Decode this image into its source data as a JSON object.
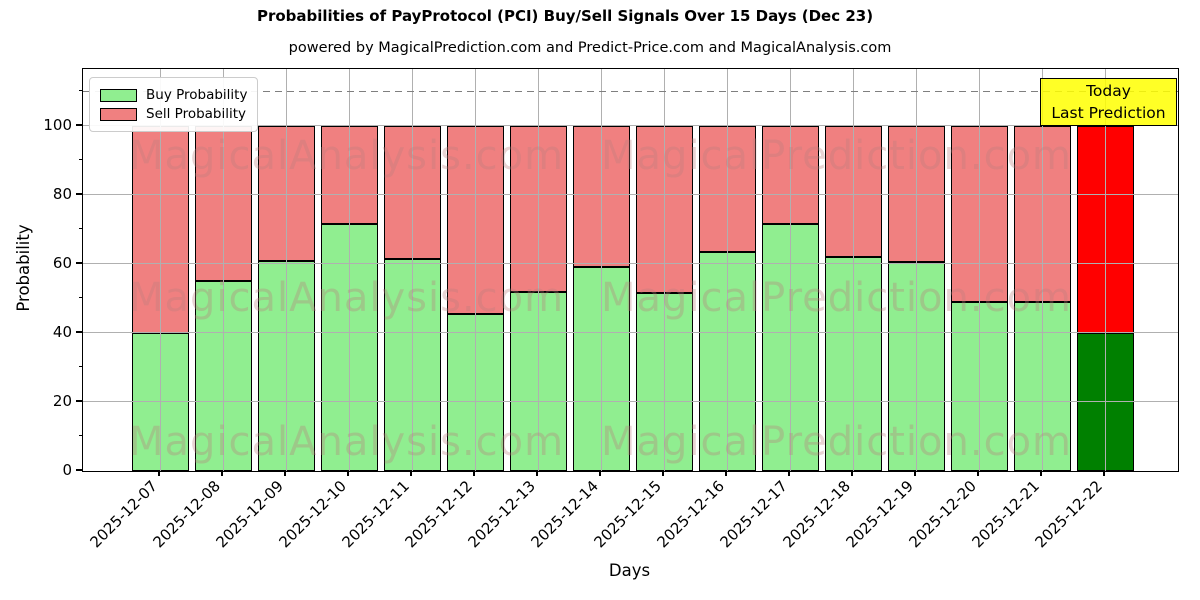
{
  "figure": {
    "title": "Probabilities of PayProtocol (PCI) Buy/Sell Signals Over 15 Days (Dec 23)",
    "subtitle": "powered by MagicalPrediction.com and Predict-Price.com and MagicalAnalysis.com"
  },
  "axes": {
    "xlabel": "Days",
    "ylabel": "Probability"
  },
  "legend": {
    "items": [
      {
        "label": "Buy Probability",
        "color": "#90ee90"
      },
      {
        "label": "Sell Probability",
        "color": "#f08080"
      }
    ]
  },
  "annotation": {
    "line1": "Today",
    "line2": "Last Prediction",
    "bg_color": "#ffff00"
  },
  "watermarks": {
    "left": "MagicalAnalysis.com",
    "right": "MagicalPrediction.com"
  },
  "colors": {
    "buy": "#90ee90",
    "sell": "#f08080",
    "buy_today": "#008000",
    "sell_today": "#ff0000",
    "grid": "#b0b0b0",
    "dashed_line": "#7f7f7f",
    "spine": "#000000",
    "bar_edge": "#000000"
  },
  "chart_data": {
    "type": "bar",
    "stacked": true,
    "title": "Probabilities of PayProtocol (PCI) Buy/Sell Signals Over 15 Days (Dec 23)",
    "xlabel": "Days",
    "ylabel": "Probability",
    "categories": [
      "2025-12-07",
      "2025-12-08",
      "2025-12-09",
      "2025-12-10",
      "2025-12-11",
      "2025-12-12",
      "2025-12-13",
      "2025-12-14",
      "2025-12-15",
      "2025-12-16",
      "2025-12-17",
      "2025-12-18",
      "2025-12-19",
      "2025-12-20",
      "2025-12-21",
      "2025-12-22"
    ],
    "series": [
      {
        "name": "Buy Probability",
        "color": "#90ee90",
        "today_color": "#008000",
        "values": [
          40,
          55,
          61,
          71.5,
          61.5,
          45.5,
          52,
          59,
          51.5,
          63.5,
          71.5,
          62,
          60.5,
          49,
          49,
          40
        ]
      },
      {
        "name": "Sell Probability",
        "color": "#f08080",
        "today_color": "#ff0000",
        "values": [
          60,
          45,
          39,
          28.5,
          38.5,
          54.5,
          48,
          41,
          48.5,
          36.5,
          28.5,
          38,
          39.5,
          51,
          51,
          60
        ]
      }
    ],
    "today_index": 15,
    "ylim": [
      0,
      116.5
    ],
    "yticks": [
      0,
      20,
      40,
      60,
      80,
      100
    ],
    "yticks_minor": [
      10,
      30,
      50,
      70,
      90,
      110
    ],
    "dashed_line_y": 110,
    "grid": true,
    "legend_position": "upper left"
  }
}
